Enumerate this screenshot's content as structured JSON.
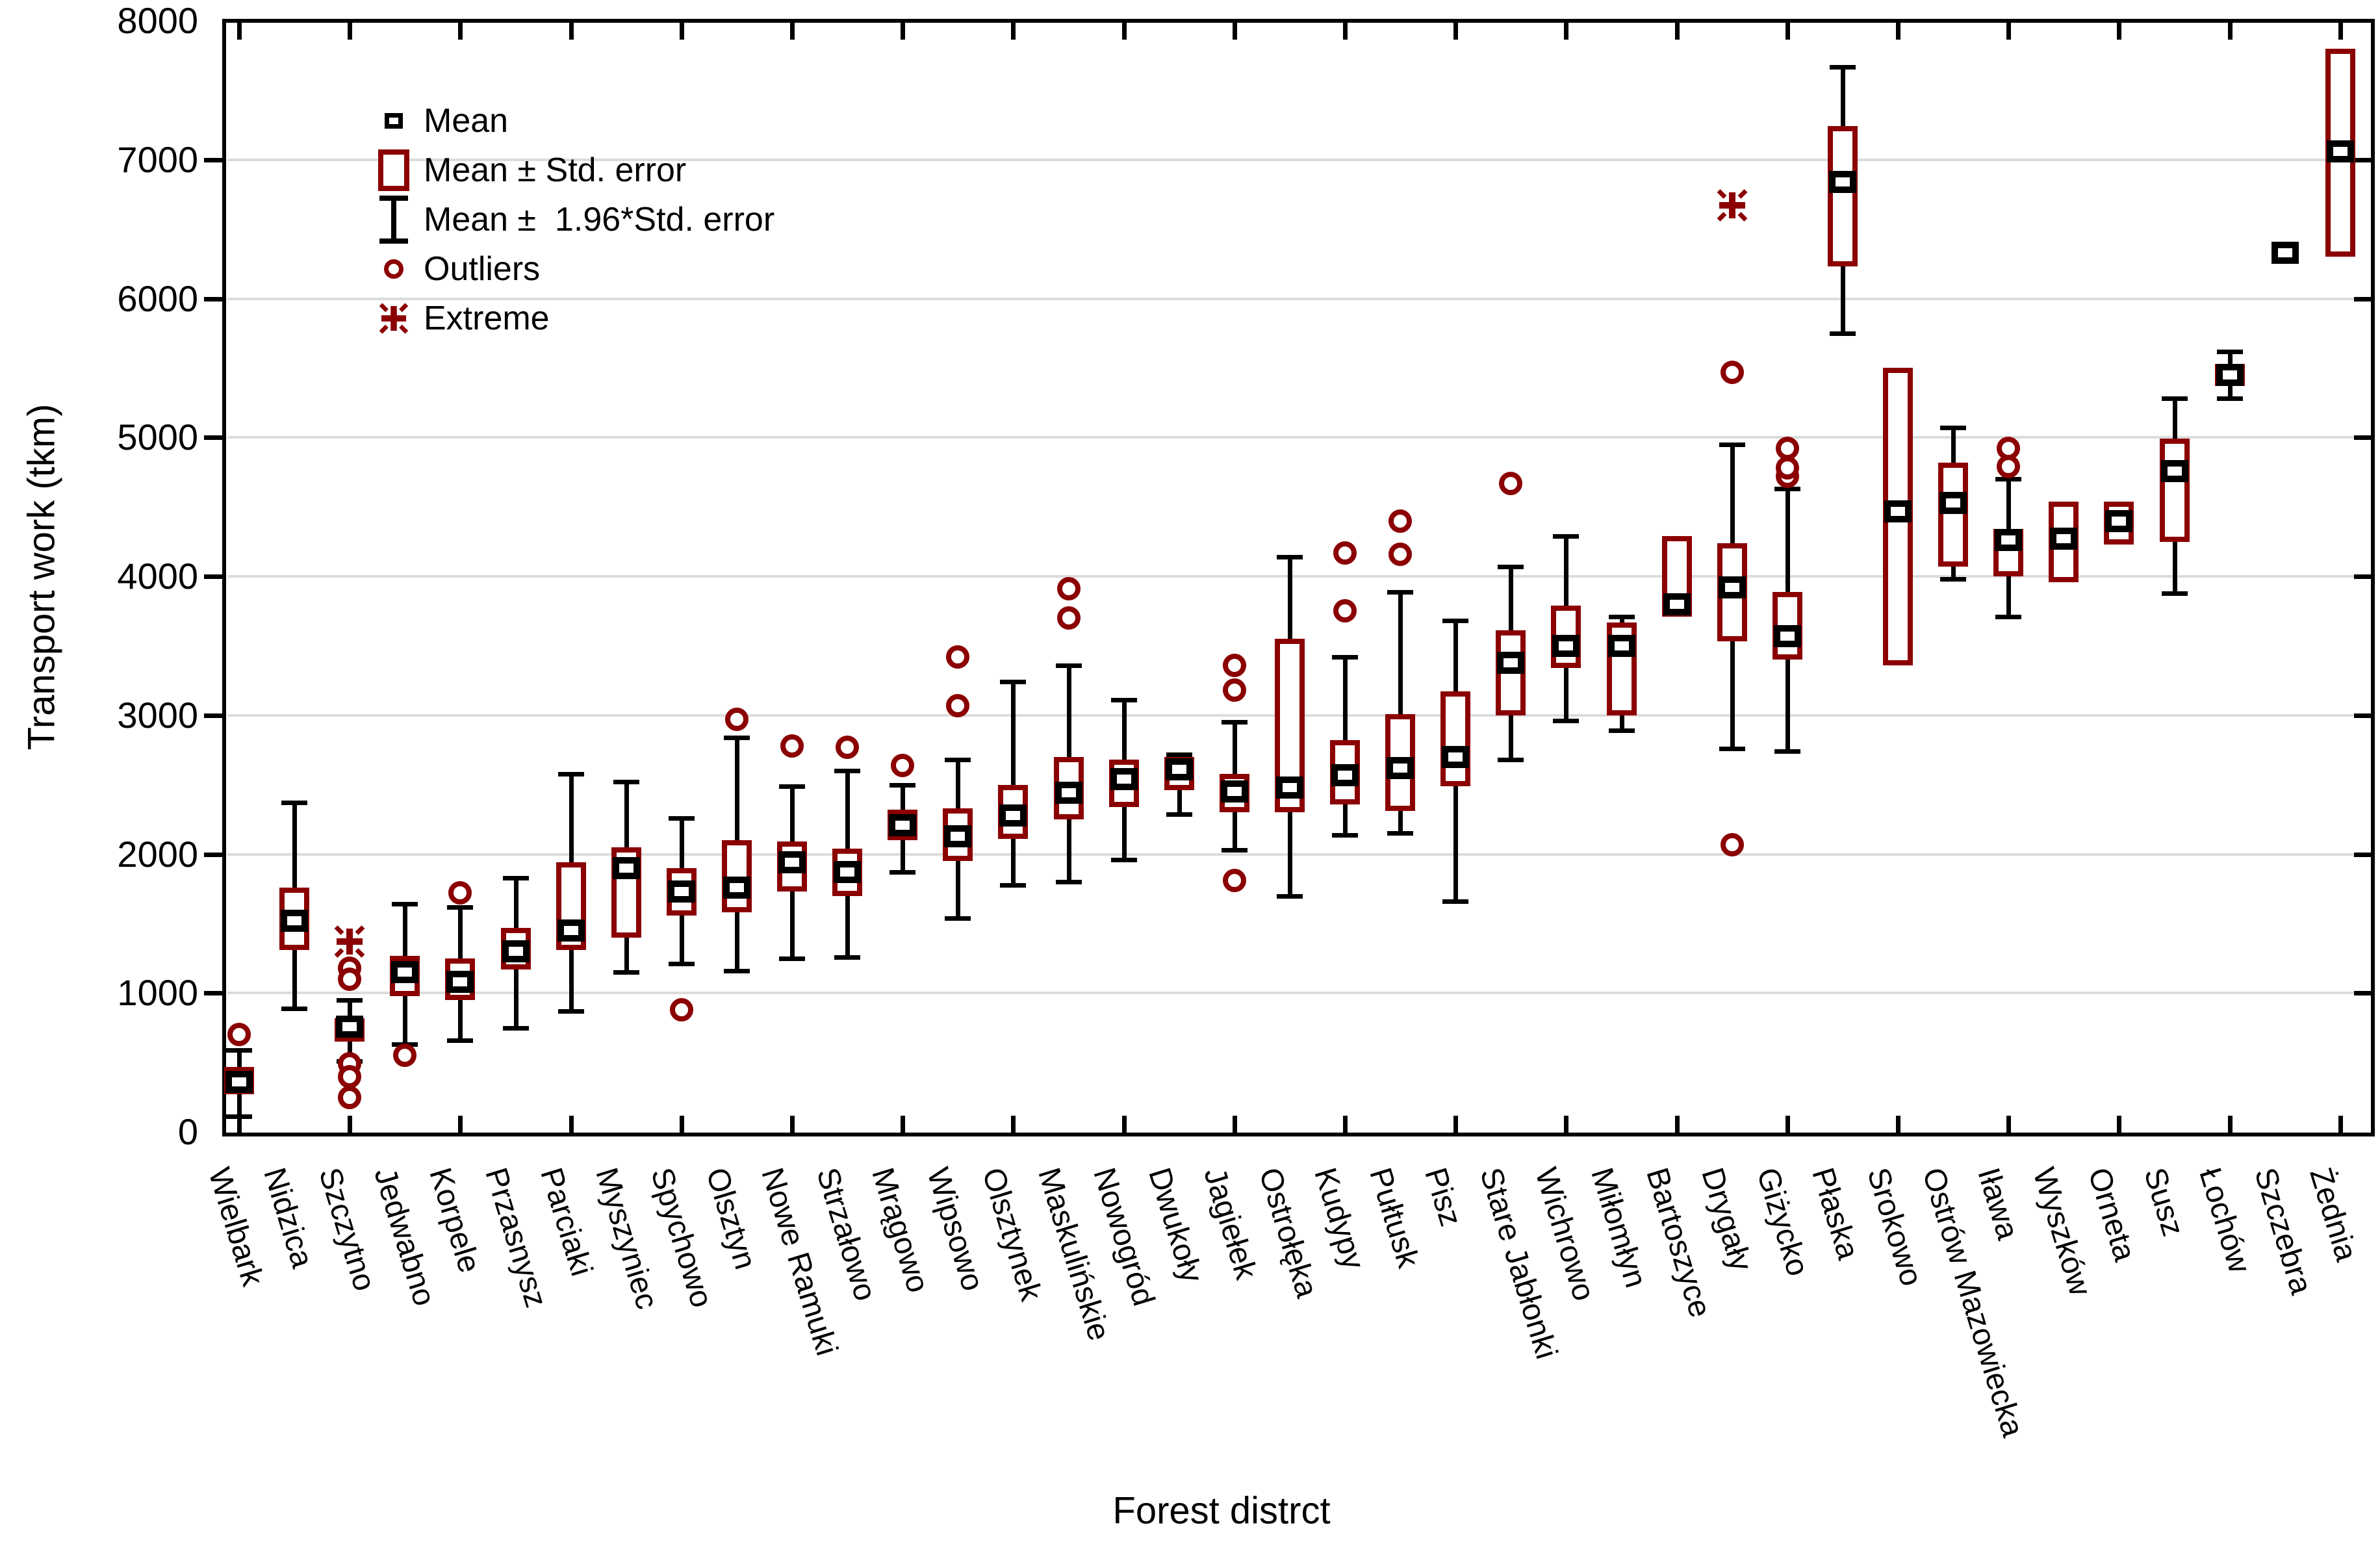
{
  "figure": {
    "background": "#ffffff"
  },
  "colors": {
    "series_accent": "#8b0000",
    "line": "#000000",
    "gridline": "#dcdcdc",
    "background": "#ffffff"
  },
  "chart_data": {
    "type": "boxplot",
    "title": "",
    "xlabel": "Forest distrct",
    "ylabel": "Transport work (tkm)",
    "ylim": [
      0,
      8000
    ],
    "ytick_step": 1000,
    "grid": "horizontal",
    "legend_position": "top-left-inside",
    "legend": [
      {
        "label": "Mean",
        "marker": "mean-square"
      },
      {
        "label": "Mean ± Std. error",
        "marker": "se-box"
      },
      {
        "label": "Mean ±  1.96*Std. error",
        "marker": "ci-whisker"
      },
      {
        "label": "Outliers",
        "marker": "outlier-circle"
      },
      {
        "label": "Extreme",
        "marker": "extreme-asterisk"
      }
    ],
    "districts": [
      {
        "name": "Wielbark",
        "mean": 360,
        "box": [
          270,
          470
        ],
        "whisker": [
          110,
          590
        ],
        "outliers": [
          700
        ],
        "extremes": []
      },
      {
        "name": "Nidzica",
        "mean": 1520,
        "box": [
          1310,
          1760
        ],
        "whisker": [
          890,
          2370
        ],
        "outliers": [],
        "extremes": []
      },
      {
        "name": "Szczytno",
        "mean": 760,
        "box": [
          650,
          820
        ],
        "whisker": [
          510,
          950
        ],
        "outliers": [
          1180,
          1100,
          490,
          400,
          250
        ],
        "extremes": [
          1370
        ]
      },
      {
        "name": "Jedwabno",
        "mean": 1150,
        "box": [
          980,
          1270
        ],
        "whisker": [
          630,
          1640
        ],
        "outliers": [
          550
        ],
        "extremes": []
      },
      {
        "name": "Korpele",
        "mean": 1080,
        "box": [
          950,
          1250
        ],
        "whisker": [
          660,
          1620
        ],
        "outliers": [
          1720
        ],
        "extremes": []
      },
      {
        "name": "Przasnysz",
        "mean": 1300,
        "box": [
          1170,
          1470
        ],
        "whisker": [
          750,
          1830
        ],
        "outliers": [],
        "extremes": []
      },
      {
        "name": "Parciaki",
        "mean": 1450,
        "box": [
          1310,
          1940
        ],
        "whisker": [
          870,
          2580
        ],
        "outliers": [],
        "extremes": []
      },
      {
        "name": "Myszyniec",
        "mean": 1900,
        "box": [
          1400,
          2050
        ],
        "whisker": [
          1150,
          2520
        ],
        "outliers": [],
        "extremes": []
      },
      {
        "name": "Spychowo",
        "mean": 1730,
        "box": [
          1560,
          1900
        ],
        "whisker": [
          1210,
          2260
        ],
        "outliers": [
          880
        ],
        "extremes": []
      },
      {
        "name": "Olsztyn",
        "mean": 1760,
        "box": [
          1580,
          2100
        ],
        "whisker": [
          1160,
          2840
        ],
        "outliers": [
          2970
        ],
        "extremes": []
      },
      {
        "name": "Nowe Ramuki",
        "mean": 1940,
        "box": [
          1730,
          2090
        ],
        "whisker": [
          1250,
          2490
        ],
        "outliers": [
          2780
        ],
        "extremes": []
      },
      {
        "name": "Strzałowo",
        "mean": 1870,
        "box": [
          1700,
          2040
        ],
        "whisker": [
          1260,
          2600
        ],
        "outliers": [
          2770
        ],
        "extremes": []
      },
      {
        "name": "Mrągowo",
        "mean": 2210,
        "box": [
          2100,
          2320
        ],
        "whisker": [
          1870,
          2500
        ],
        "outliers": [
          2640
        ],
        "extremes": []
      },
      {
        "name": "Wipsowo",
        "mean": 2130,
        "box": [
          1950,
          2330
        ],
        "whisker": [
          1540,
          2680
        ],
        "outliers": [
          3070,
          3420
        ],
        "extremes": []
      },
      {
        "name": "Olsztynek",
        "mean": 2280,
        "box": [
          2110,
          2500
        ],
        "whisker": [
          1780,
          3240
        ],
        "outliers": [],
        "extremes": []
      },
      {
        "name": "Maskulińskie",
        "mean": 2440,
        "box": [
          2250,
          2700
        ],
        "whisker": [
          1800,
          3360
        ],
        "outliers": [
          3700,
          3910
        ],
        "extremes": []
      },
      {
        "name": "Nowogród",
        "mean": 2540,
        "box": [
          2340,
          2680
        ],
        "whisker": [
          1960,
          3110
        ],
        "outliers": [],
        "extremes": []
      },
      {
        "name": "Dwukoły",
        "mean": 2610,
        "box": [
          2460,
          2700
        ],
        "whisker": [
          2290,
          2720
        ],
        "outliers": [],
        "extremes": []
      },
      {
        "name": "Jagiełek",
        "mean": 2450,
        "box": [
          2300,
          2580
        ],
        "whisker": [
          2030,
          2950
        ],
        "outliers": [
          1810,
          3180,
          3360
        ],
        "extremes": []
      },
      {
        "name": "Ostrołęka",
        "mean": 2480,
        "box": [
          2300,
          3550
        ],
        "whisker": [
          1700,
          4140
        ],
        "outliers": [],
        "extremes": []
      },
      {
        "name": "Kudypy",
        "mean": 2570,
        "box": [
          2360,
          2820
        ],
        "whisker": [
          2140,
          3420
        ],
        "outliers": [
          3750,
          4170
        ],
        "extremes": []
      },
      {
        "name": "Pułtusk",
        "mean": 2620,
        "box": [
          2310,
          3010
        ],
        "whisker": [
          2150,
          3890
        ],
        "outliers": [
          4160,
          4400
        ],
        "extremes": []
      },
      {
        "name": "Pisz",
        "mean": 2700,
        "box": [
          2490,
          3170
        ],
        "whisker": [
          1660,
          3680
        ],
        "outliers": [],
        "extremes": []
      },
      {
        "name": "Stare Jabłonki",
        "mean": 3380,
        "box": [
          3000,
          3610
        ],
        "whisker": [
          2680,
          4070
        ],
        "outliers": [
          4670
        ],
        "extremes": []
      },
      {
        "name": "Wichrowo",
        "mean": 3500,
        "box": [
          3340,
          3790
        ],
        "whisker": [
          2960,
          4290
        ],
        "outliers": [],
        "extremes": []
      },
      {
        "name": "Miłomłyn",
        "mean": 3500,
        "box": [
          3000,
          3670
        ],
        "whisker": [
          2890,
          3710
        ],
        "outliers": [],
        "extremes": []
      },
      {
        "name": "Bartoszyce",
        "mean": 3800,
        "box": [
          3710,
          4290
        ],
        "whisker": null,
        "outliers": [],
        "extremes": []
      },
      {
        "name": "Drygały",
        "mean": 3920,
        "box": [
          3530,
          4240
        ],
        "whisker": [
          2760,
          4950
        ],
        "outliers": [
          2070,
          5470
        ],
        "extremes": [
          6670
        ]
      },
      {
        "name": "Giżycko",
        "mean": 3570,
        "box": [
          3400,
          3890
        ],
        "whisker": [
          2740,
          4630
        ],
        "outliers": [
          4720,
          4780,
          4920
        ],
        "extremes": []
      },
      {
        "name": "Płaska",
        "mean": 6840,
        "box": [
          6230,
          7240
        ],
        "whisker": [
          5750,
          7670
        ],
        "outliers": [],
        "extremes": []
      },
      {
        "name": "Srokowo",
        "mean": 4470,
        "box": [
          3360,
          5500
        ],
        "whisker": null,
        "outliers": [],
        "extremes": []
      },
      {
        "name": "Ostrów Mazowiecka",
        "mean": 4530,
        "box": [
          4070,
          4820
        ],
        "whisker": [
          3980,
          5070
        ],
        "outliers": [],
        "extremes": []
      },
      {
        "name": "Iława",
        "mean": 4260,
        "box": [
          4000,
          4340
        ],
        "whisker": [
          3710,
          4700
        ],
        "outliers": [
          4790,
          4920
        ],
        "extremes": []
      },
      {
        "name": "Wyszków",
        "mean": 4270,
        "box": [
          3960,
          4540
        ],
        "whisker": null,
        "outliers": [],
        "extremes": []
      },
      {
        "name": "Orneta",
        "mean": 4400,
        "box": [
          4230,
          4540
        ],
        "whisker": null,
        "outliers": [],
        "extremes": []
      },
      {
        "name": "Susz",
        "mean": 4760,
        "box": [
          4250,
          4990
        ],
        "whisker": [
          3880,
          5280
        ],
        "outliers": [],
        "extremes": []
      },
      {
        "name": "Łochów",
        "mean": 5450,
        "box": [
          5370,
          5530
        ],
        "whisker": [
          5280,
          5620
        ],
        "outliers": [],
        "extremes": []
      },
      {
        "name": "Szczebra",
        "mean": 6330,
        "box": null,
        "whisker": null,
        "outliers": [],
        "extremes": []
      },
      {
        "name": "Żednia",
        "mean": 7060,
        "box": [
          6300,
          7800
        ],
        "whisker": null,
        "outliers": [],
        "extremes": []
      }
    ]
  }
}
